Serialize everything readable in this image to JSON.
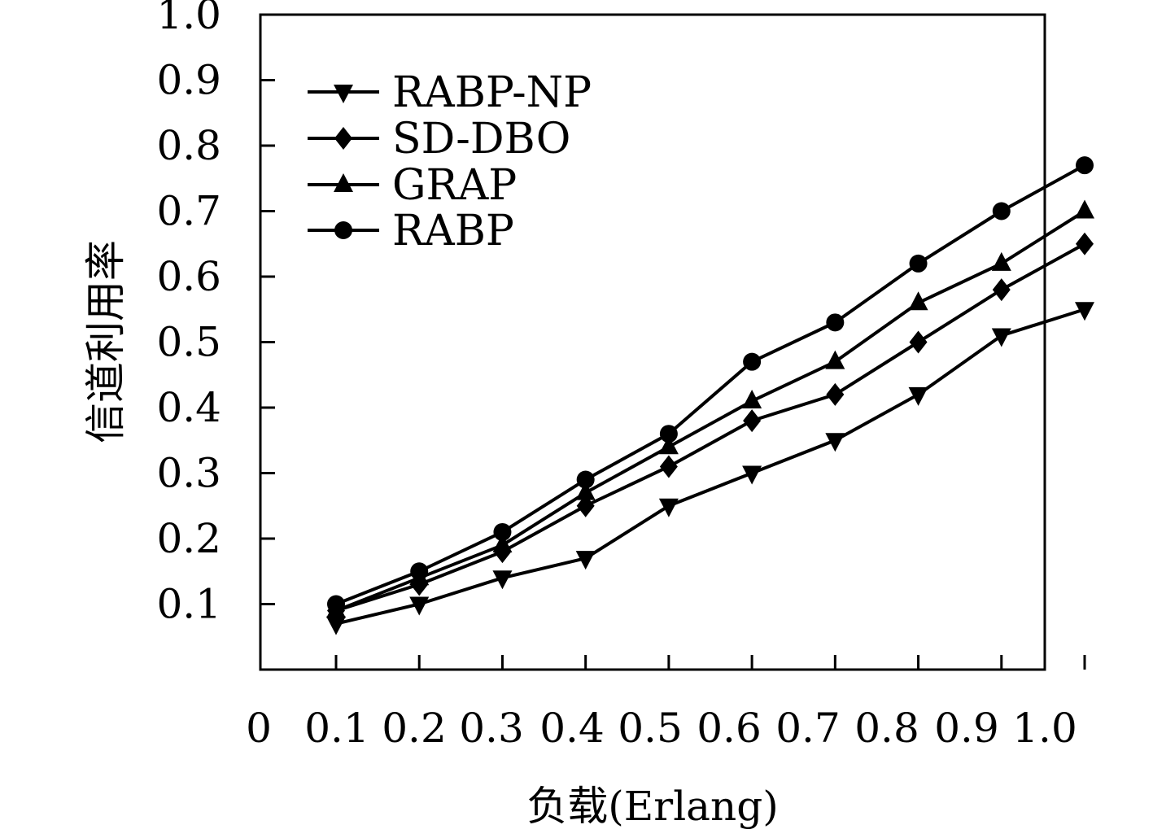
{
  "chart_data": {
    "type": "line",
    "xlabel": "负载(Erlang)",
    "ylabel": "信道利用率",
    "xlim": [
      0,
      1.0
    ],
    "ylim": [
      0,
      1.0
    ],
    "x_ticks": [
      "0",
      "0.1",
      "0.2",
      "0.3",
      "0.4",
      "0.5",
      "0.6",
      "0.7",
      "0.8",
      "0.9",
      "1.0"
    ],
    "y_ticks": [
      "0.1",
      "0.2",
      "0.3",
      "0.4",
      "0.5",
      "0.6",
      "0.7",
      "0.8",
      "0.9",
      "1.0"
    ],
    "grid": false,
    "legend_position": "top-left",
    "x": [
      0.1,
      0.2,
      0.3,
      0.4,
      0.5,
      0.6,
      0.7,
      0.8,
      0.9,
      1.0
    ],
    "series": [
      {
        "name": "RABP-NP",
        "marker": "triangle-down",
        "color": "#000000",
        "values": [
          0.07,
          0.1,
          0.14,
          0.17,
          0.25,
          0.3,
          0.35,
          0.42,
          0.51,
          0.55
        ]
      },
      {
        "name": "SD-DBO",
        "marker": "diamond",
        "color": "#000000",
        "values": [
          0.09,
          0.13,
          0.18,
          0.25,
          0.31,
          0.38,
          0.42,
          0.5,
          0.58,
          0.65
        ]
      },
      {
        "name": "GRAP",
        "marker": "triangle-up",
        "color": "#000000",
        "values": [
          0.09,
          0.14,
          0.19,
          0.27,
          0.34,
          0.41,
          0.47,
          0.56,
          0.62,
          0.7
        ]
      },
      {
        "name": "RABP",
        "marker": "circle",
        "color": "#000000",
        "values": [
          0.1,
          0.15,
          0.21,
          0.29,
          0.36,
          0.47,
          0.53,
          0.62,
          0.7,
          0.77
        ]
      }
    ]
  }
}
